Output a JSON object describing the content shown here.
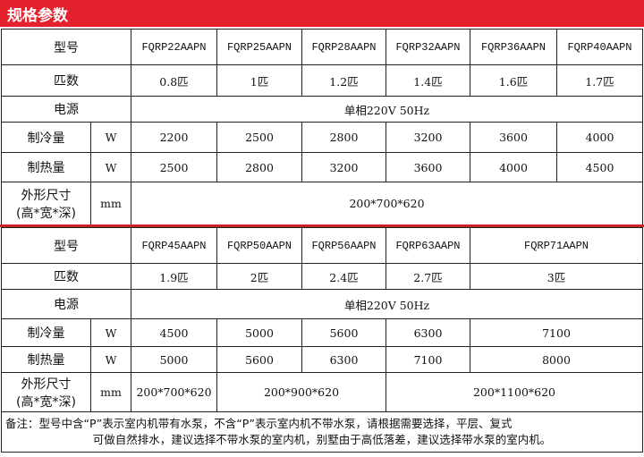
{
  "header": {
    "title": "规格参数"
  },
  "labels": {
    "model": "型号",
    "hp": "匹数",
    "power": "电源",
    "cooling": "制冷量",
    "heating": "制热量",
    "size_line1": "外形尺寸",
    "size_line2": "(高*宽*深)",
    "unit_w": "W",
    "unit_mm": "mm"
  },
  "table1": {
    "models": [
      "FQRP22AAPN",
      "FQRP25AAPN",
      "FQRP28AAPN",
      "FQRP32AAPN",
      "FQRP36AAPN",
      "FQRP40AAPN"
    ],
    "hp": [
      "0.8匹",
      "1匹",
      "1.2匹",
      "1.4匹",
      "1.6匹",
      "1.7匹"
    ],
    "power": "单相220V 50Hz",
    "cooling": [
      "2200",
      "2500",
      "2800",
      "3200",
      "3600",
      "4000"
    ],
    "heating": [
      "2500",
      "2800",
      "3200",
      "3600",
      "4000",
      "4500"
    ],
    "size": "200*700*620"
  },
  "table2": {
    "models": [
      "FQRP45AAPN",
      "FQRP50AAPN",
      "FQRP56AAPN",
      "FQRP63AAPN",
      "FQRP71AAPN"
    ],
    "hp": [
      "1.9匹",
      "2匹",
      "2.4匹",
      "2.7匹",
      "3匹"
    ],
    "power": "单相220V 50Hz",
    "cooling": [
      "4500",
      "5000",
      "5600",
      "6300",
      "7100"
    ],
    "heating": [
      "5000",
      "5600",
      "6300",
      "7100",
      "8000"
    ],
    "sizes": [
      "200*700*620",
      "200*900*620",
      "200*1100*620"
    ]
  },
  "note": {
    "line1": "备注：型号中含“P”表示室内机带有水泵，不含“P”表示室内机不带水泵，请根据需要选择，平层、复式",
    "line2": "可做自然排水，建议选择不带水泵的室内机，别墅由于高低落差，建议选择带水泵的室内机。"
  },
  "colors": {
    "header_bg": "#e5212d",
    "divider": "#c8232c"
  }
}
